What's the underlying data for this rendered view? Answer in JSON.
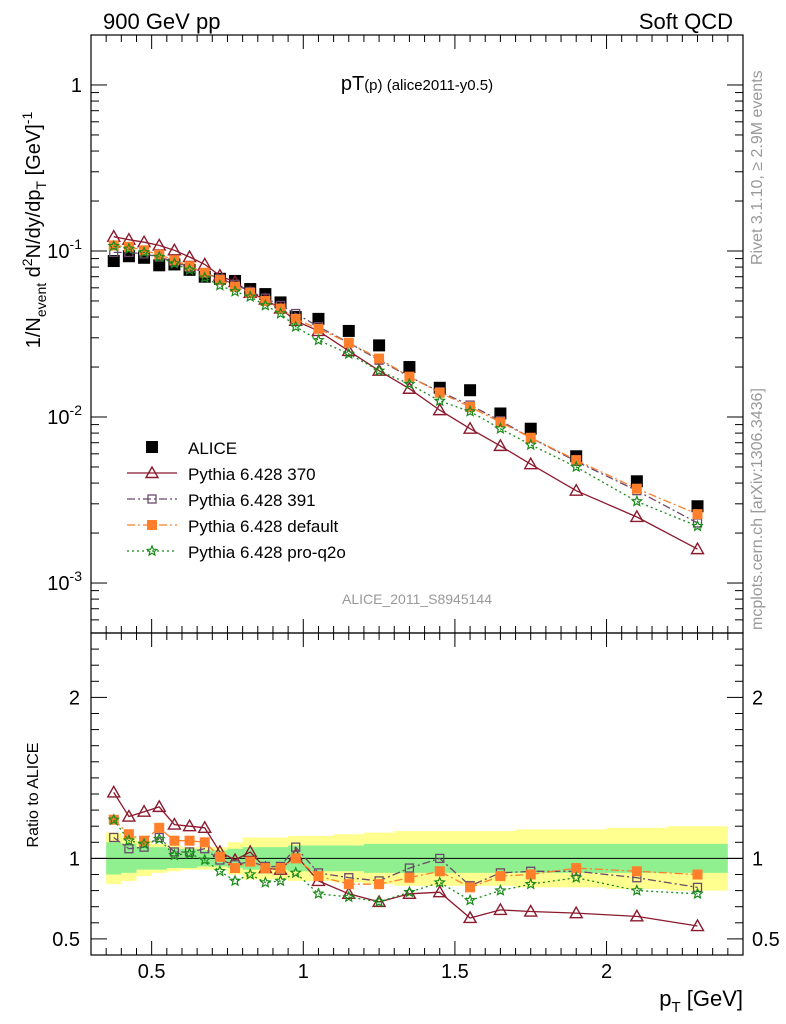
{
  "header": {
    "left": "900 GeV pp",
    "right": "Soft QCD"
  },
  "side_text": {
    "rivet": "Rivet 3.1.10, ≥ 2.9M events",
    "mcplots": "mcplots.cern.ch [arXiv:1306.3436]"
  },
  "watermark": "ALICE_2011_S8945144",
  "chart_data": [
    {
      "type": "line",
      "title": "pT(p) (alice2011-y0.5)",
      "ylabel": "1/N_event d²N/dy/dp_T [GeV]⁻¹",
      "yscale": "log",
      "ylim": [
        0.0005,
        2
      ],
      "xlim": [
        0.3,
        2.45
      ],
      "ytick_labels": [
        "1",
        "10⁻¹",
        "10⁻²",
        "10⁻³"
      ],
      "legend_position": "lower-left",
      "x": [
        0.375,
        0.425,
        0.475,
        0.525,
        0.575,
        0.625,
        0.675,
        0.725,
        0.775,
        0.825,
        0.875,
        0.925,
        0.975,
        1.05,
        1.15,
        1.25,
        1.35,
        1.45,
        1.55,
        1.65,
        1.75,
        1.9,
        2.1,
        2.3
      ],
      "series": [
        {
          "name": "ALICE",
          "color": "#000000",
          "marker": "square-filled",
          "values": [
            0.087,
            0.093,
            0.091,
            0.082,
            0.083,
            0.077,
            0.07,
            0.068,
            0.066,
            0.059,
            0.055,
            0.049,
            0.04,
            0.039,
            0.033,
            0.027,
            0.02,
            0.015,
            0.0145,
            0.0105,
            0.0085,
            0.0058,
            0.0041,
            0.0029
          ]
        },
        {
          "name": "Pythia 6.428 370",
          "color": "#8b1a2e",
          "marker": "triangle-open",
          "line": "solid",
          "values": [
            0.122,
            0.117,
            0.113,
            0.108,
            0.101,
            0.092,
            0.083,
            0.071,
            0.065,
            0.056,
            0.051,
            0.045,
            0.038,
            0.033,
            0.025,
            0.019,
            0.0148,
            0.011,
            0.0085,
            0.0067,
            0.0052,
            0.0036,
            0.0025,
            0.0016
          ]
        },
        {
          "name": "Pythia 6.428 391",
          "color": "#6a4a6a",
          "marker": "square-open",
          "line": "dashdot",
          "values": [
            0.098,
            0.098,
            0.096,
            0.092,
            0.086,
            0.08,
            0.074,
            0.068,
            0.063,
            0.057,
            0.052,
            0.047,
            0.042,
            0.035,
            0.028,
            0.022,
            0.0175,
            0.0142,
            0.0118,
            0.0095,
            0.0075,
            0.0054,
            0.0036,
            0.0023
          ]
        },
        {
          "name": "Pythia 6.428 default",
          "color": "#ff7f2a",
          "marker": "square-filled",
          "line": "dashdot",
          "values": [
            0.108,
            0.106,
            0.101,
            0.095,
            0.088,
            0.081,
            0.074,
            0.067,
            0.061,
            0.056,
            0.05,
            0.045,
            0.039,
            0.034,
            0.028,
            0.0225,
            0.0175,
            0.014,
            0.0115,
            0.0093,
            0.0075,
            0.0055,
            0.0037,
            0.0026
          ]
        },
        {
          "name": "Pythia 6.428 pro-q2o",
          "color": "#1a8a1a",
          "marker": "star",
          "line": "dotted",
          "values": [
            0.107,
            0.103,
            0.098,
            0.092,
            0.084,
            0.077,
            0.069,
            0.062,
            0.057,
            0.053,
            0.047,
            0.042,
            0.035,
            0.029,
            0.024,
            0.019,
            0.0158,
            0.0125,
            0.0108,
            0.0085,
            0.0068,
            0.005,
            0.0031,
            0.0022
          ]
        }
      ]
    },
    {
      "type": "line",
      "xlabel": "p_T [GeV]",
      "ylabel": "Ratio to ALICE",
      "ylim": [
        0.4,
        2.4
      ],
      "xlim": [
        0.3,
        2.45
      ],
      "xticks": [
        0.5,
        1,
        1.5,
        2
      ],
      "xtick_labels": [
        "0.5",
        "1",
        "1.5",
        "2"
      ],
      "yticks": [
        0.5,
        1,
        2
      ],
      "ytick_labels": [
        "0.5",
        "1",
        "2"
      ],
      "x": [
        0.375,
        0.425,
        0.475,
        0.525,
        0.575,
        0.625,
        0.675,
        0.725,
        0.775,
        0.825,
        0.875,
        0.925,
        0.975,
        1.05,
        1.15,
        1.25,
        1.35,
        1.45,
        1.55,
        1.65,
        1.75,
        1.9,
        2.1,
        2.3
      ],
      "bands": {
        "stat_half_width": [
          0.1,
          0.09,
          0.07,
          0.07,
          0.06,
          0.06,
          0.05,
          0.05,
          0.06,
          0.07,
          0.07,
          0.07,
          0.08,
          0.08,
          0.08,
          0.09,
          0.09,
          0.09,
          0.09,
          0.09,
          0.09,
          0.09,
          0.09,
          0.09
        ],
        "total_half_width": [
          0.16,
          0.14,
          0.11,
          0.09,
          0.08,
          0.07,
          0.07,
          0.07,
          0.1,
          0.13,
          0.13,
          0.13,
          0.14,
          0.14,
          0.15,
          0.16,
          0.17,
          0.17,
          0.17,
          0.17,
          0.18,
          0.18,
          0.19,
          0.2
        ],
        "stat_color": "#90f090",
        "total_color": "#ffff90"
      },
      "series": [
        {
          "name": "Pythia 6.428 370",
          "color": "#8b1a2e",
          "values": [
            1.41,
            1.26,
            1.29,
            1.32,
            1.21,
            1.2,
            1.19,
            1.04,
            0.99,
            1.04,
            0.94,
            0.93,
            1.02,
            0.86,
            0.78,
            0.73,
            0.78,
            0.79,
            0.63,
            0.68,
            0.67,
            0.66,
            0.64,
            0.58
          ]
        },
        {
          "name": "Pythia 6.428 391",
          "color": "#6a4a6a",
          "values": [
            1.13,
            1.06,
            1.07,
            1.13,
            1.04,
            1.04,
            1.06,
            0.99,
            0.96,
            0.98,
            0.95,
            0.95,
            1.07,
            0.91,
            0.88,
            0.86,
            0.94,
            1.0,
            0.83,
            0.91,
            0.92,
            0.92,
            0.88,
            0.82
          ]
        },
        {
          "name": "Pythia 6.428 default",
          "color": "#ff7f2a",
          "values": [
            1.24,
            1.15,
            1.11,
            1.19,
            1.11,
            1.11,
            1.1,
            1.01,
            0.94,
            0.98,
            0.94,
            0.94,
            1.0,
            0.89,
            0.84,
            0.84,
            0.88,
            0.92,
            0.82,
            0.89,
            0.9,
            0.94,
            0.92,
            0.9
          ]
        },
        {
          "name": "Pythia 6.428 pro-q2o",
          "color": "#1a8a1a",
          "values": [
            1.24,
            1.11,
            1.09,
            1.12,
            1.02,
            1.03,
            0.99,
            0.92,
            0.86,
            0.9,
            0.85,
            0.86,
            0.91,
            0.78,
            0.76,
            0.73,
            0.79,
            0.85,
            0.74,
            0.8,
            0.84,
            0.88,
            0.8,
            0.78
          ]
        }
      ]
    }
  ]
}
